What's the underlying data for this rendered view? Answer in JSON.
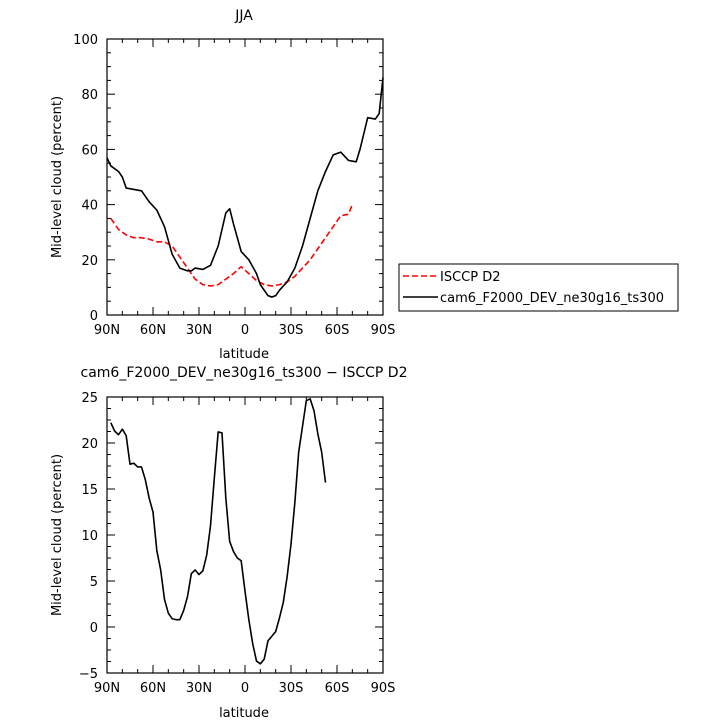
{
  "chart_data": [
    {
      "type": "line",
      "title": "JJA",
      "xlabel": "latitude",
      "ylabel": "Mid-level cloud (percent)",
      "xlim": [
        90,
        -90
      ],
      "ylim": [
        0,
        100
      ],
      "xticks": [
        90,
        60,
        30,
        0,
        -30,
        -60,
        -90
      ],
      "xtick_labels": [
        "90N",
        "60N",
        "30N",
        "0",
        "30S",
        "60S",
        "90S"
      ],
      "yticks": [
        0,
        20,
        40,
        60,
        80,
        100
      ],
      "legend": "right, outside plot",
      "series": [
        {
          "name": "ISCCP D2",
          "color": "#ff0000",
          "dash": "dashed",
          "points": [
            [
              87.5,
              35
            ],
            [
              82.5,
              31
            ],
            [
              77.5,
              29
            ],
            [
              72.5,
              28
            ],
            [
              67.5,
              28
            ],
            [
              62.5,
              27.5
            ],
            [
              57.5,
              26.5
            ],
            [
              52.5,
              26.5
            ],
            [
              47.5,
              25
            ],
            [
              42.5,
              21
            ],
            [
              37.5,
              17
            ],
            [
              32.5,
              13
            ],
            [
              27.5,
              11
            ],
            [
              22.5,
              10.5
            ],
            [
              17.5,
              11
            ],
            [
              12.5,
              13
            ],
            [
              7.5,
              15
            ],
            [
              2.5,
              17.5
            ],
            [
              -2.5,
              15
            ],
            [
              -7.5,
              12.5
            ],
            [
              -12.5,
              11
            ],
            [
              -17.5,
              10.5
            ],
            [
              -22.5,
              11
            ],
            [
              -27.5,
              12
            ],
            [
              -32.5,
              14
            ],
            [
              -37.5,
              17
            ],
            [
              -42.5,
              20
            ],
            [
              -47.5,
              24
            ],
            [
              -52.5,
              28
            ],
            [
              -57.5,
              32
            ],
            [
              -62.5,
              36
            ],
            [
              -67.5,
              36.5
            ],
            [
              -70,
              40
            ]
          ]
        },
        {
          "name": "cam6_F2000_DEV_ne30g16_ts300",
          "color": "#000000",
          "dash": "solid",
          "points": [
            [
              90,
              57
            ],
            [
              87.5,
              54
            ],
            [
              82.5,
              52
            ],
            [
              80,
              50
            ],
            [
              77.5,
              46
            ],
            [
              72.5,
              45.5
            ],
            [
              67.5,
              45
            ],
            [
              62.5,
              41
            ],
            [
              57.5,
              38
            ],
            [
              52.5,
              32
            ],
            [
              47.5,
              22
            ],
            [
              42.5,
              17
            ],
            [
              37.5,
              16
            ],
            [
              35,
              16
            ],
            [
              32.5,
              17
            ],
            [
              27.5,
              16.5
            ],
            [
              22.5,
              18
            ],
            [
              17.5,
              25
            ],
            [
              12.5,
              37
            ],
            [
              10,
              38.5
            ],
            [
              7.5,
              33
            ],
            [
              2.5,
              23
            ],
            [
              -2.5,
              20
            ],
            [
              -7.5,
              15
            ],
            [
              -10,
              11
            ],
            [
              -15,
              7
            ],
            [
              -17.5,
              6.5
            ],
            [
              -20,
              7
            ],
            [
              -22.5,
              9
            ],
            [
              -27.5,
              12
            ],
            [
              -32.5,
              17
            ],
            [
              -37.5,
              25
            ],
            [
              -42.5,
              35
            ],
            [
              -47.5,
              45
            ],
            [
              -52.5,
              52
            ],
            [
              -57.5,
              58
            ],
            [
              -62.5,
              59
            ],
            [
              -67.5,
              56
            ],
            [
              -72.5,
              55.5
            ],
            [
              -75,
              60
            ],
            [
              -80,
              71.5
            ],
            [
              -85,
              71
            ],
            [
              -87.5,
              73
            ],
            [
              -90,
              86
            ]
          ]
        }
      ]
    },
    {
      "type": "line",
      "title": "cam6_F2000_DEV_ne30g16_ts300 − ISCCP D2",
      "xlabel": "latitude",
      "ylabel": "Mid-level cloud (percent)",
      "xlim": [
        90,
        -90
      ],
      "ylim": [
        -5,
        25
      ],
      "xticks": [
        90,
        60,
        30,
        0,
        -30,
        -60,
        -90
      ],
      "xtick_labels": [
        "90N",
        "60N",
        "30N",
        "0",
        "30S",
        "60S",
        "90S"
      ],
      "yticks": [
        -5,
        0,
        5,
        10,
        15,
        20,
        25
      ],
      "legend": "none",
      "series": [
        {
          "color": "#000000",
          "dash": "solid",
          "points": [
            [
              87.5,
              22.2
            ],
            [
              85,
              21.3
            ],
            [
              82.5,
              20.9
            ],
            [
              80,
              21.5
            ],
            [
              77.5,
              20.8
            ],
            [
              75,
              17.7
            ],
            [
              72.5,
              17.8
            ],
            [
              70,
              17.4
            ],
            [
              67.5,
              17.4
            ],
            [
              65,
              16
            ],
            [
              62.5,
              14
            ],
            [
              60,
              12.5
            ],
            [
              57.5,
              8.3
            ],
            [
              55,
              6.2
            ],
            [
              52.5,
              3
            ],
            [
              50,
              1.5
            ],
            [
              47.5,
              0.9
            ],
            [
              45,
              0.8
            ],
            [
              42.5,
              0.8
            ],
            [
              40,
              1.8
            ],
            [
              37.5,
              3.3
            ],
            [
              35,
              5.8
            ],
            [
              32.5,
              6.2
            ],
            [
              30,
              5.7
            ],
            [
              27.5,
              6.1
            ],
            [
              25,
              7.8
            ],
            [
              22.5,
              11
            ],
            [
              20,
              16.2
            ],
            [
              17.5,
              21.2
            ],
            [
              15,
              21.1
            ],
            [
              12.5,
              14
            ],
            [
              10,
              9.3
            ],
            [
              7.5,
              8.2
            ],
            [
              5,
              7.5
            ],
            [
              2.5,
              7.2
            ],
            [
              0,
              3.9
            ],
            [
              -2.5,
              0.8
            ],
            [
              -5,
              -1.8
            ],
            [
              -7.5,
              -3.7
            ],
            [
              -10,
              -4
            ],
            [
              -12.5,
              -3.5
            ],
            [
              -15,
              -1.5
            ],
            [
              -17.5,
              -1
            ],
            [
              -20,
              -0.5
            ],
            [
              -22.5,
              1
            ],
            [
              -25,
              2.7
            ],
            [
              -27.5,
              5.5
            ],
            [
              -30,
              9
            ],
            [
              -32.5,
              13.5
            ],
            [
              -35,
              19
            ],
            [
              -37.5,
              21.8
            ],
            [
              -40,
              24.6
            ],
            [
              -42.5,
              24.8
            ],
            [
              -45,
              23.5
            ],
            [
              -47.5,
              21
            ],
            [
              -50,
              19
            ],
            [
              -52.5,
              15.7
            ]
          ]
        }
      ]
    }
  ]
}
